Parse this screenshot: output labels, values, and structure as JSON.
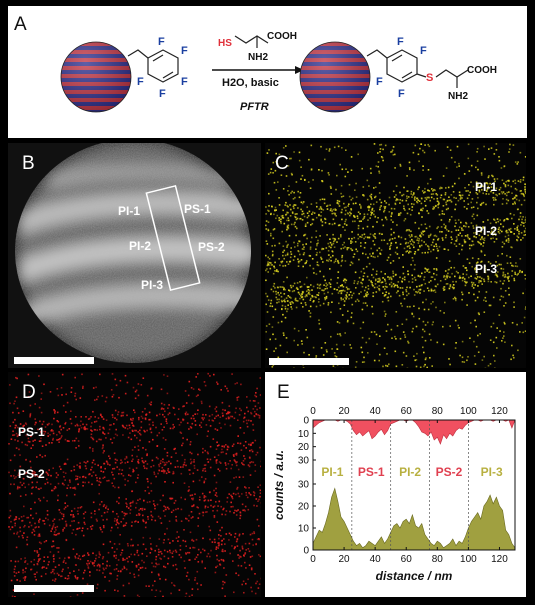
{
  "panels": {
    "a": {
      "label": "A"
    },
    "b": {
      "label": "B",
      "pi_labels": [
        "PI-1",
        "PI-2",
        "PI-3"
      ],
      "ps_labels": [
        "PS-1",
        "PS-2"
      ]
    },
    "c": {
      "label": "C",
      "labels": [
        "PI-1",
        "PI-2",
        "PI-3"
      ]
    },
    "d": {
      "label": "D",
      "labels": [
        "PS-1",
        "PS-2"
      ]
    },
    "e": {
      "label": "E"
    }
  },
  "scheme": {
    "reagent": {
      "hs": "HS",
      "cooh": "COOH",
      "nh2": "NH2"
    },
    "conditions": {
      "line1": "H2O, basic",
      "line2": "PFTR"
    },
    "product": {
      "s": "S",
      "cooh": "COOH",
      "nh2": "NH2"
    },
    "fluorine": "F"
  },
  "colors": {
    "stripe_red": "#c03040",
    "stripe_blue": "#2a2a8a",
    "sulfur_red": "#e0303a",
    "sulfur_map": "#d8d020",
    "carbon_map": "#e02020",
    "ps_fill": "#f05060",
    "pi_fill": "#a0a040",
    "pi_text": "#b8b040",
    "ps_text": "#e04050"
  },
  "chart_data": {
    "type": "area",
    "xlabel": "distance / nm",
    "ylabel": "counts / a.u.",
    "xlim": [
      0,
      130
    ],
    "x_ticks": [
      0,
      20,
      40,
      60,
      80,
      100,
      120
    ],
    "top_series": {
      "ylim": [
        0,
        30
      ],
      "y_ticks": [
        0,
        10,
        20,
        30
      ],
      "orientation": "inverted"
    },
    "bottom_series": {
      "ylim": [
        0,
        30
      ],
      "y_ticks": [
        0,
        10,
        20,
        30
      ]
    },
    "region_boundaries": [
      25,
      50,
      75,
      100
    ],
    "regions": [
      "PI-1",
      "PS-1",
      "PI-2",
      "PS-2",
      "PI-3"
    ],
    "ps_profile": {
      "x": [
        0,
        2,
        4,
        6,
        8,
        10,
        12,
        14,
        16,
        18,
        20,
        22,
        24,
        26,
        28,
        30,
        32,
        34,
        36,
        38,
        40,
        42,
        44,
        46,
        48,
        50,
        52,
        54,
        56,
        58,
        60,
        62,
        64,
        66,
        68,
        70,
        72,
        74,
        76,
        78,
        80,
        82,
        84,
        86,
        88,
        90,
        92,
        94,
        96,
        98,
        100,
        102,
        104,
        106,
        108,
        110,
        112,
        114,
        116,
        118,
        120,
        122,
        124,
        126,
        128,
        130
      ],
      "y": [
        6,
        4,
        2,
        1,
        0,
        0,
        0,
        0,
        1,
        0,
        0,
        1,
        3,
        8,
        11,
        9,
        12,
        10,
        8,
        14,
        12,
        9,
        7,
        11,
        8,
        3,
        2,
        1,
        0,
        0,
        1,
        0,
        0,
        2,
        5,
        9,
        10,
        12,
        9,
        15,
        13,
        18,
        11,
        14,
        10,
        12,
        8,
        6,
        7,
        4,
        2,
        1,
        0,
        0,
        1,
        0,
        0,
        0,
        1,
        0,
        0,
        0,
        1,
        0,
        6,
        0
      ]
    },
    "pi_profile": {
      "x": [
        0,
        2,
        4,
        6,
        8,
        10,
        12,
        14,
        16,
        18,
        20,
        22,
        24,
        26,
        28,
        30,
        32,
        34,
        36,
        38,
        40,
        42,
        44,
        46,
        48,
        50,
        52,
        54,
        56,
        58,
        60,
        62,
        64,
        66,
        68,
        70,
        72,
        74,
        76,
        78,
        80,
        82,
        84,
        86,
        88,
        90,
        92,
        94,
        96,
        98,
        100,
        102,
        104,
        106,
        108,
        110,
        112,
        114,
        116,
        118,
        120,
        122,
        124,
        126,
        128,
        130
      ],
      "y": [
        3,
        6,
        9,
        8,
        12,
        17,
        24,
        28,
        22,
        15,
        13,
        10,
        7,
        4,
        2,
        3,
        1,
        2,
        4,
        3,
        2,
        4,
        6,
        3,
        5,
        8,
        11,
        12,
        10,
        13,
        14,
        12,
        16,
        11,
        10,
        12,
        7,
        5,
        3,
        2,
        4,
        3,
        1,
        2,
        3,
        5,
        2,
        4,
        3,
        6,
        10,
        13,
        15,
        17,
        14,
        20,
        22,
        25,
        21,
        24,
        20,
        18,
        9,
        7,
        3,
        1
      ]
    }
  }
}
